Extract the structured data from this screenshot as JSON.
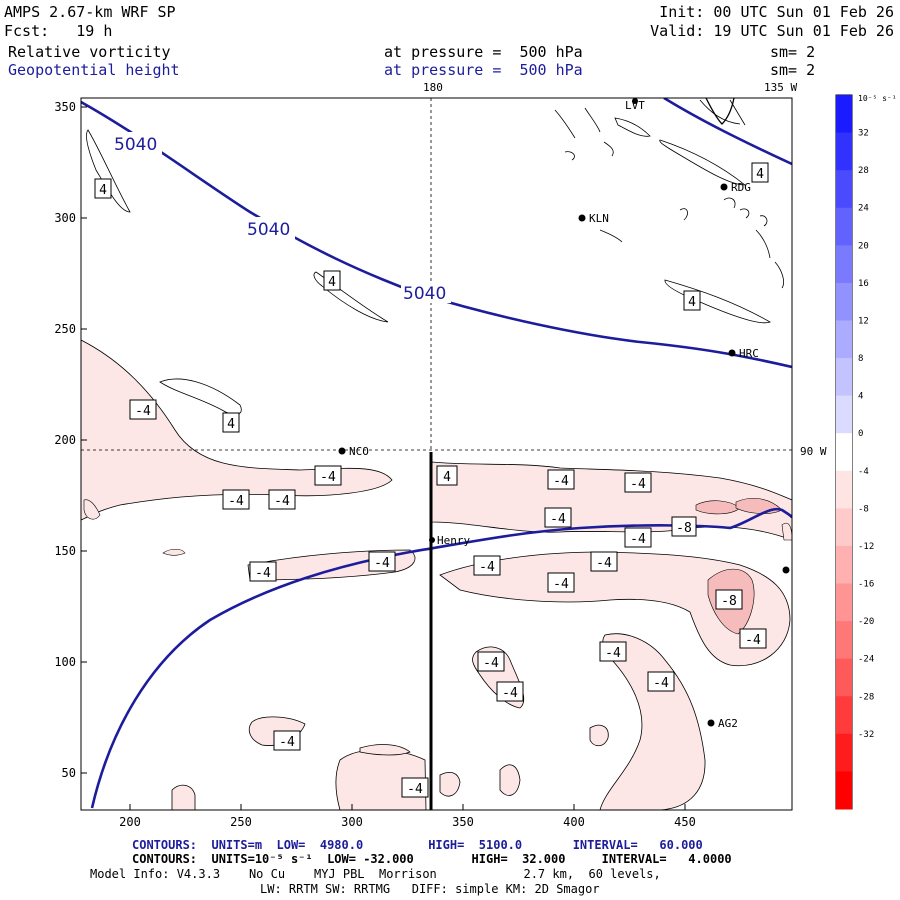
{
  "header": {
    "model_title": "AMPS 2.67-km WRF SP",
    "forecast": "Fcst:   19 h",
    "init": "Init: 00 UTC Sun 01 Feb 26",
    "valid": "Valid: 19 UTC Sun 01 Feb 26",
    "field1_name": "Relative vorticity",
    "field1_level": "at pressure =  500 hPa",
    "field1_smooth": "sm= 2",
    "field2_name": "Geopotential height",
    "field2_level": "at pressure =  500 hPa",
    "field2_smooth": "sm= 2"
  },
  "map": {
    "x_ticks": [
      "200",
      "250",
      "300",
      "350",
      "400",
      "450"
    ],
    "y_ticks": [
      "350",
      "300",
      "250",
      "200",
      "150",
      "100",
      "50"
    ],
    "meridian_180": "180",
    "meridian_135w": "135 W",
    "meridian_90w": "90 W",
    "height_labels": [
      "5040",
      "5040",
      "5040"
    ],
    "vort_labels_pos": [
      "4",
      "4",
      "4",
      "4",
      "4",
      "4",
      "-8"
    ],
    "vort_labels_neg": [
      "-4",
      "-4",
      "-4",
      "-4",
      "-4",
      "-4",
      "-4",
      "-4",
      "-4",
      "-4",
      "-4",
      "-4",
      "-4",
      "-4",
      "-4",
      "-4",
      "-4",
      "-8",
      "-4",
      "-4",
      "-4"
    ],
    "stations": [
      "NCO",
      "Henry",
      "LVT",
      "RDG",
      "KLN",
      "HRC",
      "AG2"
    ]
  },
  "colorbar": {
    "unit_label": "10⁻⁵ s⁻¹",
    "ticks": [
      "32",
      "28",
      "24",
      "20",
      "16",
      "12",
      "8",
      "4",
      "0",
      "-4",
      "-8",
      "-12",
      "-16",
      "-20",
      "-24",
      "-28",
      "-32"
    ],
    "colors": [
      "#1b1bff",
      "#3232ff",
      "#4a4aff",
      "#6262ff",
      "#7a7aff",
      "#9292ff",
      "#ababff",
      "#c3c3ff",
      "#dbdbff",
      "#ffffff",
      "#ffe4e4",
      "#ffcaca",
      "#ffb0b0",
      "#ff9494",
      "#ff7878",
      "#ff5a5a",
      "#ff3b3b",
      "#ff1c1c",
      "#ff0000"
    ]
  },
  "footer": {
    "line1": "CONTOURS:  UNITS=m  LOW=  4980.0         HIGH=  5100.0       INTERVAL=   60.000",
    "line2": "CONTOURS:  UNITS=10⁻⁵ s⁻¹  LOW= -32.000        HIGH=  32.000     INTERVAL=   4.0000",
    "line3": "Model Info: V4.3.3    No Cu    MYJ PBL  Morrison            2.7 km,  60 levels,",
    "line4": "LW: RRTM SW: RRTMG   DIFF: simple KM: 2D Smagor"
  },
  "colors": {
    "height_contour": "#1c1c9c",
    "vort_fill": "#fde6e6",
    "vort_fill_strong": "#f6bcbc"
  }
}
